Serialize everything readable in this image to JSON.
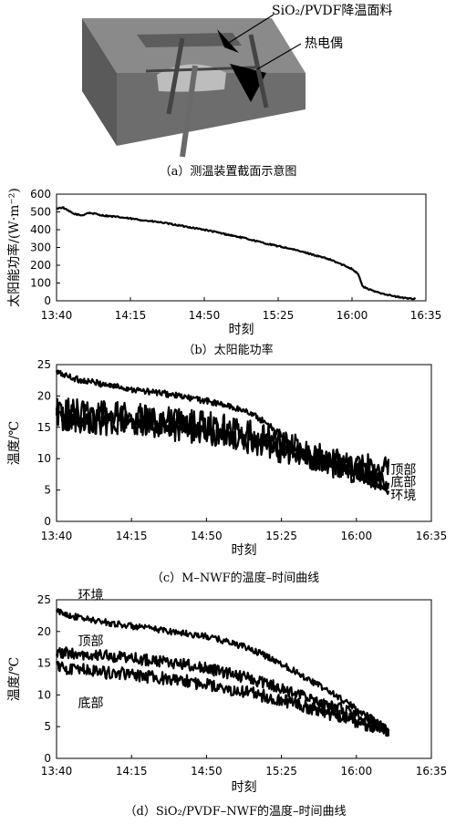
{
  "figure": {
    "captions": {
      "a": "（a）测温装置截面示意图",
      "b": "（b）太阳能功率",
      "c": "（c）M–NWF的温度–时间曲线",
      "d": "（d）SiO₂/PVDF–NWF的温度–时间曲线"
    },
    "diagram": {
      "label_film": "SiO₂/PVDF降温面料",
      "label_thermocouple": "热电偶",
      "colors": {
        "box_top": "#8a8a8a",
        "box_front": "#6d6d6d",
        "box_side": "#5a5a5a",
        "rod": "#7a7a7a",
        "film": "#000000"
      }
    }
  },
  "chart_data": [
    {
      "id": "b",
      "type": "line",
      "xlabel": "时刻",
      "ylabel": "太阳能功率/(W·m⁻²)",
      "xticks": [
        "13:40",
        "14:15",
        "14:50",
        "15:25",
        "16:00",
        "16:35"
      ],
      "xlim": [
        0,
        175
      ],
      "ylim": [
        0,
        600
      ],
      "yticks": [
        0,
        100,
        200,
        300,
        400,
        500,
        600
      ],
      "series": [
        {
          "x": [
            0,
            3,
            5,
            8,
            12,
            15,
            18,
            22,
            30,
            40,
            50,
            60,
            70,
            80,
            90,
            100,
            110,
            120,
            130,
            135,
            140,
            143,
            145,
            150,
            155,
            160,
            165,
            170
          ],
          "y": [
            520,
            525,
            510,
            490,
            480,
            495,
            490,
            480,
            470,
            455,
            440,
            420,
            400,
            375,
            350,
            320,
            295,
            265,
            230,
            205,
            180,
            150,
            80,
            55,
            40,
            25,
            15,
            12
          ],
          "noise": 4
        }
      ]
    },
    {
      "id": "c",
      "type": "line",
      "xlabel": "时刻",
      "ylabel": "温度/℃",
      "xticks": [
        "13:40",
        "14:15",
        "14:50",
        "15:25",
        "16:00",
        "16:35"
      ],
      "xlim": [
        0,
        175
      ],
      "ylim": [
        0,
        25
      ],
      "yticks": [
        0,
        5,
        10,
        15,
        20,
        25
      ],
      "series": [
        {
          "name": "环境",
          "x": [
            0,
            10,
            20,
            30,
            40,
            50,
            60,
            70,
            80,
            90,
            100,
            110,
            120,
            130,
            140,
            150,
            155
          ],
          "y": [
            23.8,
            22.6,
            22.0,
            21.4,
            20.8,
            20.4,
            19.8,
            19.2,
            18.4,
            17.4,
            15.2,
            12.0,
            10.2,
            8.8,
            7.4,
            5.6,
            4.6
          ],
          "noise": 0.5
        },
        {
          "name": "顶部",
          "x": [
            0,
            10,
            20,
            30,
            40,
            50,
            60,
            70,
            80,
            90,
            100,
            110,
            120,
            130,
            140,
            150,
            155
          ],
          "y": [
            17.5,
            17.2,
            17.0,
            16.8,
            16.5,
            16.2,
            15.8,
            15.4,
            14.8,
            14.0,
            13.0,
            11.8,
            10.6,
            9.6,
            8.8,
            8.5,
            8.3
          ],
          "noise": 2.3
        },
        {
          "name": "底部",
          "x": [
            0,
            10,
            20,
            30,
            40,
            50,
            60,
            70,
            80,
            90,
            100,
            110,
            120,
            130,
            140,
            150,
            155
          ],
          "y": [
            16.2,
            16.0,
            15.8,
            15.6,
            15.4,
            15.0,
            14.6,
            14.2,
            13.6,
            12.8,
            11.8,
            10.8,
            9.8,
            8.8,
            7.8,
            7.0,
            6.6
          ],
          "noise": 2.0
        }
      ]
    },
    {
      "id": "d",
      "type": "line",
      "xlabel": "时刻",
      "ylabel": "温度/℃",
      "xticks": [
        "13:40",
        "14:15",
        "14:50",
        "15:25",
        "16:00",
        "16:35"
      ],
      "xlim": [
        0,
        175
      ],
      "ylim": [
        0,
        25
      ],
      "yticks": [
        0,
        5,
        10,
        15,
        20,
        25
      ],
      "series": [
        {
          "name": "环境",
          "x": [
            0,
            10,
            20,
            30,
            40,
            50,
            60,
            70,
            80,
            90,
            100,
            110,
            120,
            130,
            140,
            150,
            155
          ],
          "y": [
            23.2,
            22.2,
            21.6,
            21.1,
            20.6,
            20.2,
            19.7,
            19.2,
            18.4,
            17.3,
            15.8,
            14.0,
            12.0,
            10.0,
            7.8,
            5.8,
            4.6
          ],
          "noise": 0.5
        },
        {
          "name": "顶部",
          "x": [
            0,
            10,
            20,
            30,
            40,
            50,
            60,
            70,
            80,
            90,
            100,
            110,
            120,
            130,
            140,
            150,
            155
          ],
          "y": [
            16.8,
            16.4,
            16.2,
            16.0,
            15.6,
            15.2,
            14.8,
            14.2,
            13.4,
            12.6,
            11.6,
            10.4,
            9.2,
            8.2,
            6.8,
            5.2,
            4.4
          ],
          "noise": 0.9
        },
        {
          "name": "底部",
          "x": [
            0,
            10,
            20,
            30,
            40,
            50,
            60,
            70,
            80,
            90,
            100,
            110,
            120,
            130,
            140,
            150,
            155
          ],
          "y": [
            14.5,
            14.0,
            13.6,
            13.4,
            13.0,
            12.6,
            12.2,
            11.6,
            11.0,
            10.4,
            9.6,
            8.8,
            7.8,
            6.8,
            5.8,
            4.8,
            4.2
          ],
          "noise": 1.0
        }
      ]
    }
  ]
}
